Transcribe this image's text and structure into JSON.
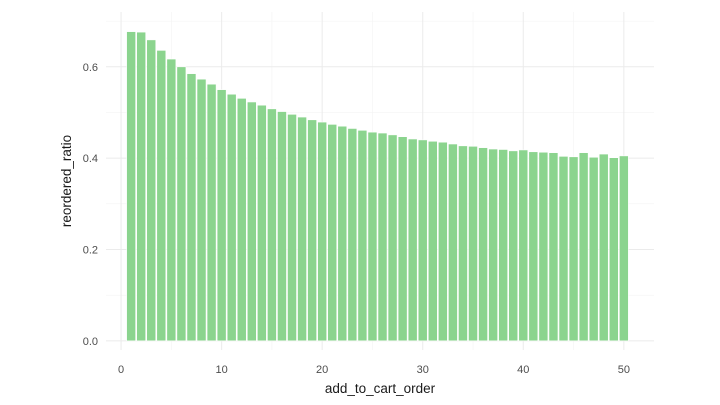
{
  "chart_data": {
    "type": "bar",
    "title": "",
    "xlabel": "add_to_cart_order",
    "ylabel": "reordered_ratio",
    "x": [
      1,
      2,
      3,
      4,
      5,
      6,
      7,
      8,
      9,
      10,
      11,
      12,
      13,
      14,
      15,
      16,
      17,
      18,
      19,
      20,
      21,
      22,
      23,
      24,
      25,
      26,
      27,
      28,
      29,
      30,
      31,
      32,
      33,
      34,
      35,
      36,
      37,
      38,
      39,
      40,
      41,
      42,
      43,
      44,
      45,
      46,
      47,
      48,
      49,
      50
    ],
    "values": [
      0.677,
      0.676,
      0.659,
      0.636,
      0.617,
      0.6,
      0.585,
      0.573,
      0.562,
      0.55,
      0.54,
      0.531,
      0.523,
      0.516,
      0.508,
      0.502,
      0.496,
      0.49,
      0.484,
      0.479,
      0.474,
      0.47,
      0.465,
      0.461,
      0.457,
      0.455,
      0.451,
      0.447,
      0.442,
      0.44,
      0.437,
      0.435,
      0.431,
      0.427,
      0.426,
      0.423,
      0.42,
      0.419,
      0.416,
      0.418,
      0.414,
      0.413,
      0.412,
      0.404,
      0.403,
      0.412,
      0.402,
      0.409,
      0.401,
      0.405
    ],
    "xlim": [
      -1.5,
      53
    ],
    "ylim": [
      -0.02,
      0.72
    ],
    "x_ticks": [
      0,
      10,
      20,
      30,
      40,
      50
    ],
    "y_ticks": [
      0.0,
      0.2,
      0.4,
      0.6
    ],
    "x_tick_labels": [
      "0",
      "10",
      "20",
      "30",
      "40",
      "50"
    ],
    "y_tick_labels": [
      "0.0",
      "0.2",
      "0.4",
      "0.6"
    ],
    "grid": true,
    "legend": "none",
    "colors": {
      "bar": "#8bd48e",
      "bar_edge": "#ffffff",
      "grid": "#ebebeb",
      "background": "#ffffff"
    }
  }
}
